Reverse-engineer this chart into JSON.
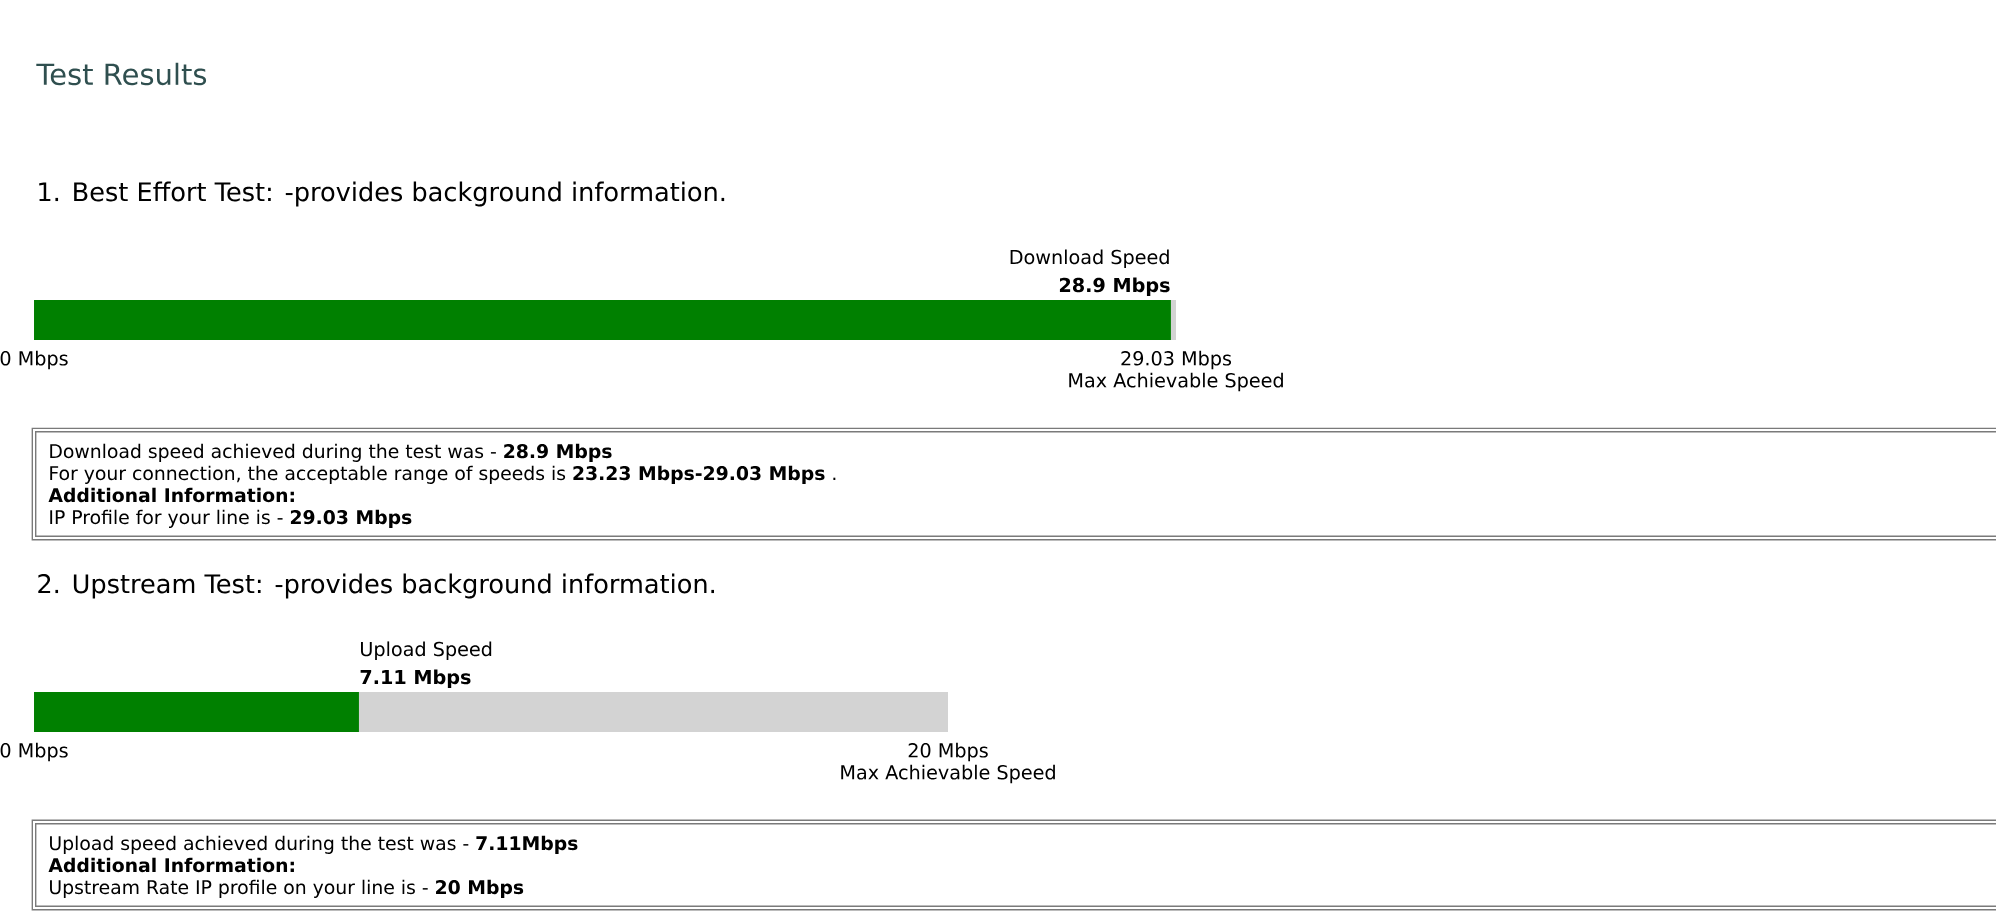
{
  "chart_data": [
    {
      "type": "bar",
      "orientation": "horizontal",
      "title": "Test Results",
      "subtitle": "1. Best Effort Test: -provides background information.",
      "categories": [
        "Download Speed"
      ],
      "values": [
        28.9
      ],
      "color": "#008000",
      "value_labels": [
        "28.9 Mbps"
      ],
      "xlim": [
        0,
        29.03
      ],
      "xticks": [
        {
          "value": 0,
          "label": "0 Mbps"
        },
        {
          "value": 29.03,
          "label": "29.03 Mbps"
        }
      ],
      "xlabel": "Max Achievable Speed",
      "annotations": [
        "Download speed achieved during the test was - **28.9 Mbps**",
        "For your connection, the acceptable range of speeds is **23.23 Mbps-29.03 Mbps** .",
        "Additional Information:",
        "IP Profile for your line is - **29.03 Mbps**"
      ]
    },
    {
      "type": "bar",
      "orientation": "horizontal",
      "title": "2. Upstream Test: -provides background information.",
      "categories": [
        "Upload Speed"
      ],
      "values": [
        7.11
      ],
      "color": "#008000",
      "value_labels": [
        "7.11 Mbps"
      ],
      "xlim": [
        0,
        20
      ],
      "xticks": [
        {
          "value": 0,
          "label": "0 Mbps"
        },
        {
          "value": 20,
          "label": "20 Mbps"
        }
      ],
      "xlabel": "Max Achievable Speed",
      "annotations": [
        "Upload speed achieved during the test was - **7.11Mbps**",
        "Additional Information:",
        "Upstream Rate IP profile on your line is - **20 Mbps**"
      ]
    }
  ]
}
